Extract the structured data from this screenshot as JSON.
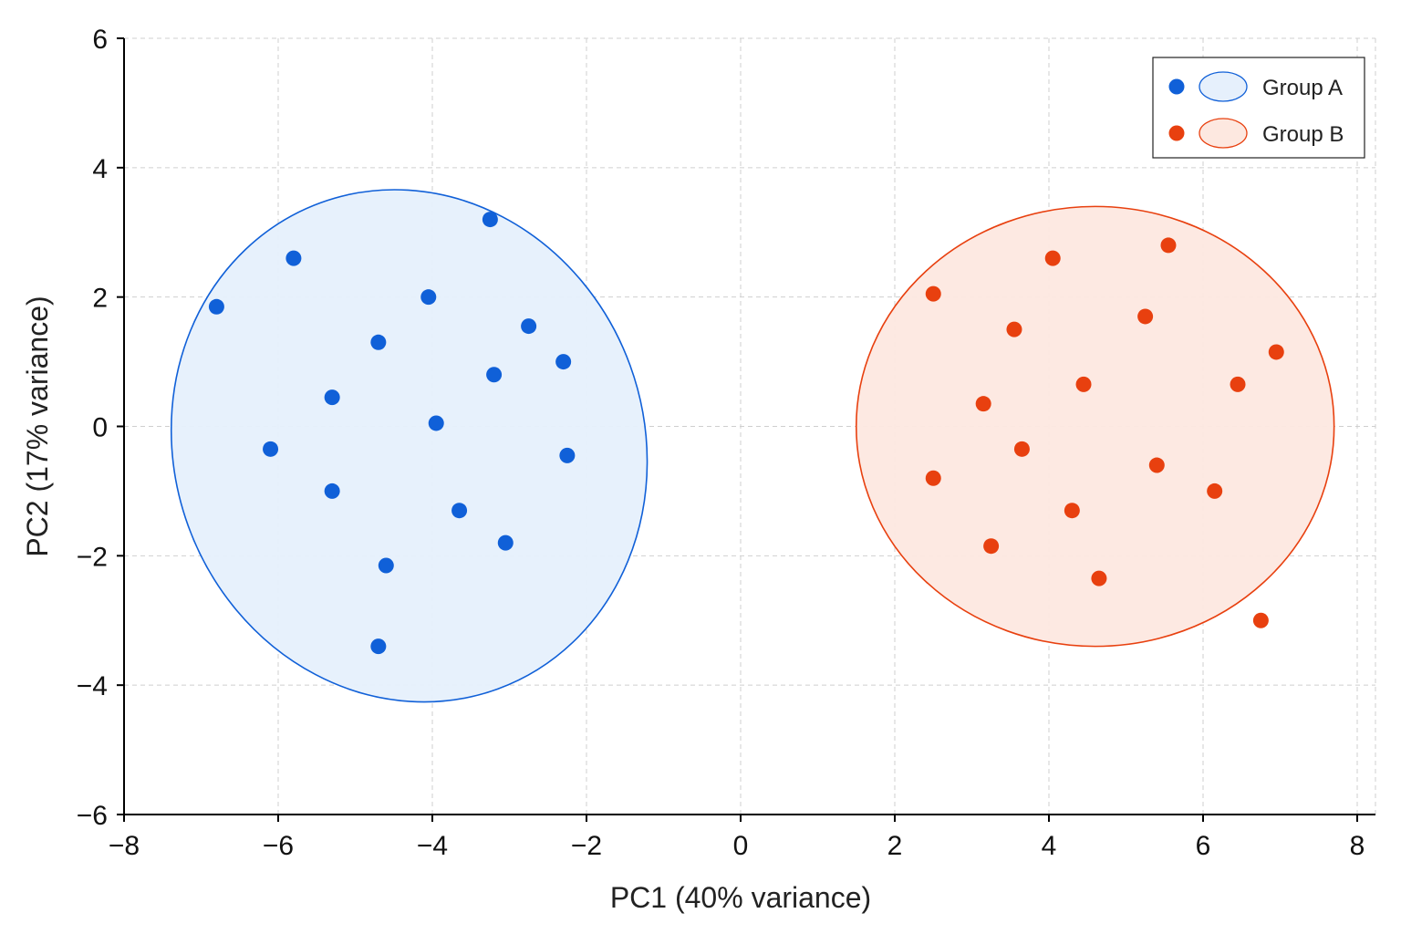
{
  "chart_data": {
    "type": "scatter",
    "xlabel": "PC1 (40% variance)",
    "ylabel": "PC2 (17% variance)",
    "xlim": [
      -8,
      8
    ],
    "ylim": [
      -6,
      6
    ],
    "xticks": [
      -8,
      -6,
      -4,
      -2,
      0,
      2,
      4,
      6,
      8
    ],
    "yticks": [
      -6,
      -4,
      -2,
      0,
      2,
      4,
      6
    ],
    "xtick_labels": [
      "−8",
      "−6",
      "−4",
      "−2",
      "0",
      "2",
      "4",
      "6",
      "8"
    ],
    "ytick_labels": [
      "−6",
      "−4",
      "−2",
      "0",
      "2",
      "4",
      "6"
    ],
    "grid": true,
    "legend_position": "top-right",
    "series": [
      {
        "name": "Group A",
        "color": "#1060d8",
        "fill": "#e6f0fc",
        "ellipse": {
          "cx": -4.3,
          "cy": -0.3,
          "rx": 3.05,
          "ry": 4.0,
          "rotation_deg": -20
        },
        "points": [
          [
            -6.8,
            1.85
          ],
          [
            -5.8,
            2.6
          ],
          [
            -3.25,
            3.2
          ],
          [
            -4.05,
            2.0
          ],
          [
            -4.7,
            1.3
          ],
          [
            -2.75,
            1.55
          ],
          [
            -2.3,
            1.0
          ],
          [
            -3.2,
            0.8
          ],
          [
            -5.3,
            0.45
          ],
          [
            -3.95,
            0.05
          ],
          [
            -6.1,
            -0.35
          ],
          [
            -2.25,
            -0.45
          ],
          [
            -5.3,
            -1.0
          ],
          [
            -3.65,
            -1.3
          ],
          [
            -3.05,
            -1.8
          ],
          [
            -4.6,
            -2.15
          ],
          [
            -4.7,
            -3.4
          ]
        ]
      },
      {
        "name": "Group B",
        "color": "#e8400f",
        "fill": "#fde8e0",
        "ellipse": {
          "cx": 4.6,
          "cy": 0.0,
          "rx": 3.1,
          "ry": 3.4,
          "rotation_deg": 0
        },
        "points": [
          [
            2.5,
            2.05
          ],
          [
            4.05,
            2.6
          ],
          [
            5.55,
            2.8
          ],
          [
            3.55,
            1.5
          ],
          [
            5.25,
            1.7
          ],
          [
            6.95,
            1.15
          ],
          [
            4.45,
            0.65
          ],
          [
            6.45,
            0.65
          ],
          [
            3.15,
            0.35
          ],
          [
            3.65,
            -0.35
          ],
          [
            5.4,
            -0.6
          ],
          [
            2.5,
            -0.8
          ],
          [
            6.15,
            -1.0
          ],
          [
            4.3,
            -1.3
          ],
          [
            3.25,
            -1.85
          ],
          [
            4.65,
            -2.35
          ],
          [
            6.75,
            -3.0
          ]
        ]
      }
    ]
  }
}
